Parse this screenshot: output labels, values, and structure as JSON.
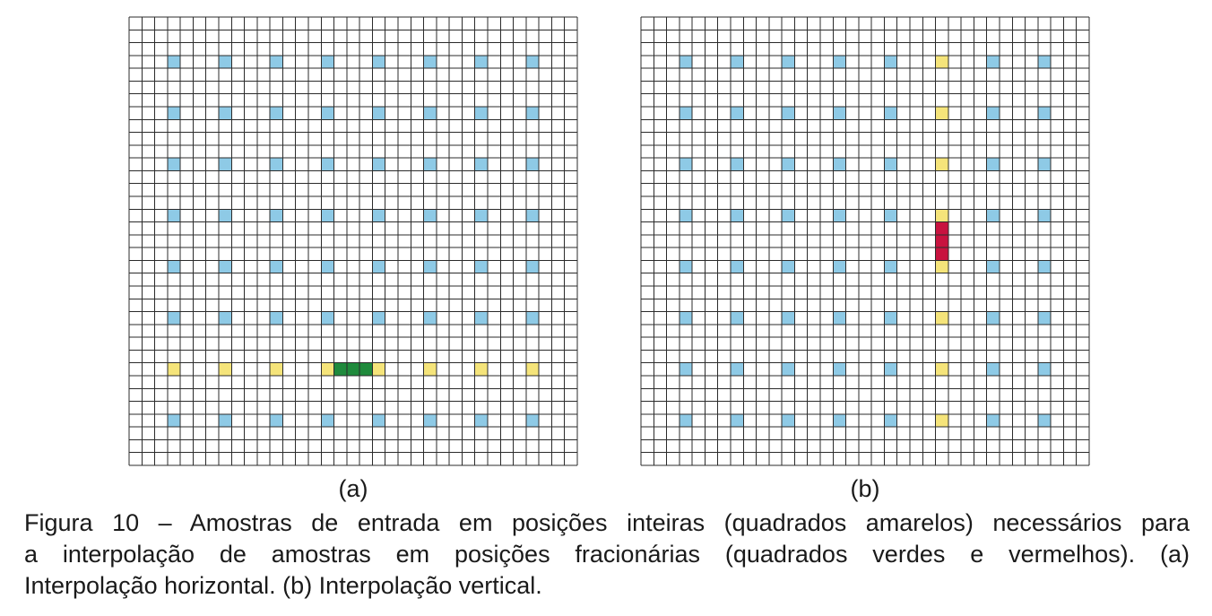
{
  "figure": {
    "sublabel_a": "(a)",
    "sublabel_b": "(b)",
    "caption_line1": "Figura 10 – Amostras de entrada em posições inteiras (quadrados amarelos) necessários para",
    "caption_line2": "a interpolação de amostras em posições fracionárias (quadrados verdes e vermelhos).  (a)",
    "caption_line3": "Interpolação horizontal. (b) Interpolação vertical."
  },
  "grid": {
    "cells": 35,
    "sample_indices": [
      3,
      7,
      11,
      15,
      19,
      23,
      27,
      31
    ]
  },
  "panels": {
    "a": {
      "integer_sample_color": "#8ecae6",
      "required_sample_color": "#f5e47a",
      "fractional_sample_color": "#1f8a3c",
      "required_row": 6,
      "fractional_cells": [
        [
          16,
          27
        ],
        [
          17,
          27
        ],
        [
          18,
          27
        ]
      ]
    },
    "b": {
      "integer_sample_color": "#8ecae6",
      "required_sample_color": "#f5e47a",
      "fractional_sample_color": "#c8133f",
      "required_column": 5,
      "fractional_cells": [
        [
          23,
          16
        ],
        [
          23,
          17
        ],
        [
          23,
          18
        ]
      ]
    }
  },
  "colors": {
    "grid_line": "#2b2b2b",
    "background": "#ffffff"
  }
}
